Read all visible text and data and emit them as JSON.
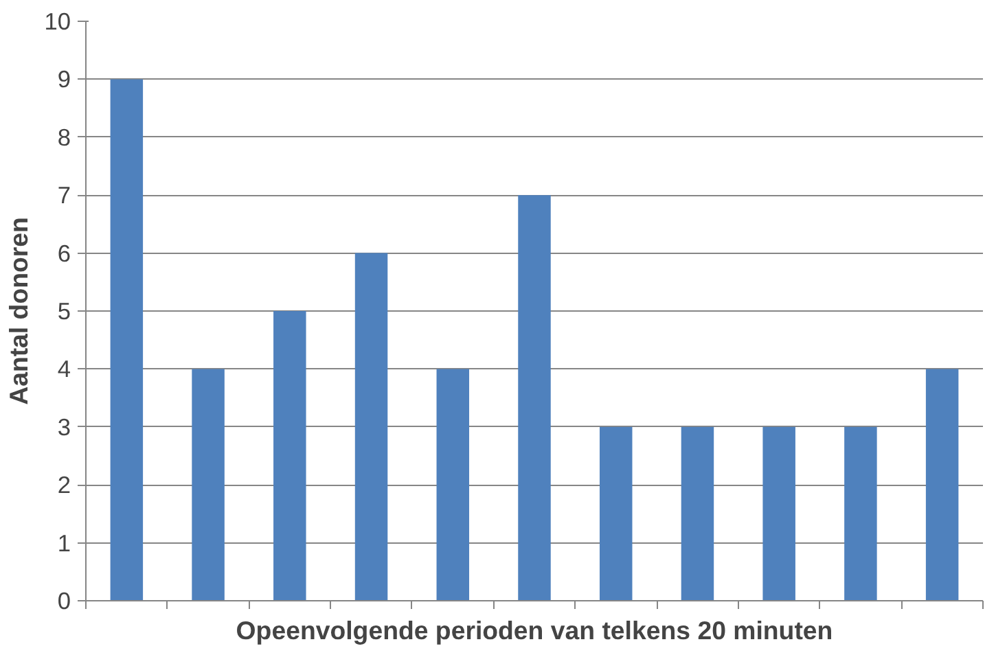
{
  "chart_data": {
    "type": "bar",
    "xlabel": "Opeenvolgende perioden van telkens 20 minuten",
    "ylabel": "Aantal donoren",
    "categories": [
      null,
      null,
      null,
      null,
      null,
      null,
      null,
      null,
      null,
      null,
      null
    ],
    "values": [
      9,
      4,
      5,
      6,
      4,
      7,
      3,
      3,
      3,
      3,
      4
    ],
    "color": "#4f81bd",
    "ylim": [
      0,
      10
    ],
    "yticks": [
      0,
      1,
      2,
      3,
      4,
      5,
      6,
      7,
      8,
      9,
      10
    ],
    "grid": "y"
  }
}
